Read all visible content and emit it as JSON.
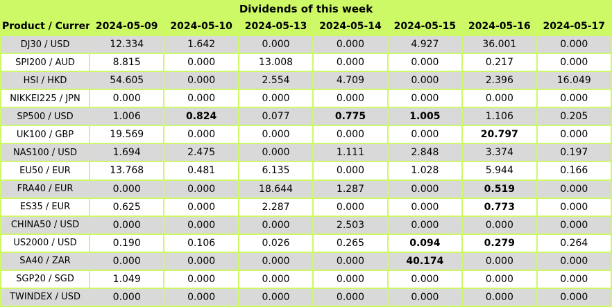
{
  "title": "Dividends of this week",
  "colors": {
    "header_bg": "#CDF966",
    "grid_border": "#CDF966",
    "row_even_bg": "#D9D9D9",
    "row_odd_bg": "#FFFFFF",
    "text": "#000000"
  },
  "table": {
    "product_header": "Product / Currency",
    "date_headers": [
      "2024-05-09",
      "2024-05-10",
      "2024-05-13",
      "2024-05-14",
      "2024-05-15",
      "2024-05-16",
      "2024-05-17"
    ],
    "rows": [
      {
        "product": "DJ30 / USD",
        "values": [
          "12.334",
          "1.642",
          "0.000",
          "0.000",
          "4.927",
          "36.001",
          "0.000"
        ],
        "bold_indices": []
      },
      {
        "product": "SPI200 / AUD",
        "values": [
          "8.815",
          "0.000",
          "13.008",
          "0.000",
          "0.000",
          "0.217",
          "0.000"
        ],
        "bold_indices": []
      },
      {
        "product": "HSI / HKD",
        "values": [
          "54.605",
          "0.000",
          "2.554",
          "4.709",
          "0.000",
          "2.396",
          "16.049"
        ],
        "bold_indices": []
      },
      {
        "product": "NIKKEI225 / JPN",
        "values": [
          "0.000",
          "0.000",
          "0.000",
          "0.000",
          "0.000",
          "0.000",
          "0.000"
        ],
        "bold_indices": []
      },
      {
        "product": "SP500 / USD",
        "values": [
          "1.006",
          "0.824",
          "0.077",
          "0.775",
          "1.005",
          "1.106",
          "0.205"
        ],
        "bold_indices": [
          1,
          3,
          4
        ]
      },
      {
        "product": "UK100 / GBP",
        "values": [
          "19.569",
          "0.000",
          "0.000",
          "0.000",
          "0.000",
          "20.797",
          "0.000"
        ],
        "bold_indices": [
          5
        ]
      },
      {
        "product": "NAS100 / USD",
        "values": [
          "1.694",
          "2.475",
          "0.000",
          "1.111",
          "2.848",
          "3.374",
          "0.197"
        ],
        "bold_indices": []
      },
      {
        "product": "EU50 / EUR",
        "values": [
          "13.768",
          "0.481",
          "6.135",
          "0.000",
          "1.028",
          "5.944",
          "0.166"
        ],
        "bold_indices": []
      },
      {
        "product": "FRA40 / EUR",
        "values": [
          "0.000",
          "0.000",
          "18.644",
          "1.287",
          "0.000",
          "0.519",
          "0.000"
        ],
        "bold_indices": [
          5
        ]
      },
      {
        "product": "ES35 / EUR",
        "values": [
          "0.625",
          "0.000",
          "2.287",
          "0.000",
          "0.000",
          "0.773",
          "0.000"
        ],
        "bold_indices": [
          5
        ]
      },
      {
        "product": "CHINA50 / USD",
        "values": [
          "0.000",
          "0.000",
          "0.000",
          "2.503",
          "0.000",
          "0.000",
          "0.000"
        ],
        "bold_indices": []
      },
      {
        "product": "US2000 / USD",
        "values": [
          "0.190",
          "0.106",
          "0.026",
          "0.265",
          "0.094",
          "0.279",
          "0.264"
        ],
        "bold_indices": [
          4,
          5
        ]
      },
      {
        "product": "SA40 / ZAR",
        "values": [
          "0.000",
          "0.000",
          "0.000",
          "0.000",
          "40.174",
          "0.000",
          "0.000"
        ],
        "bold_indices": [
          4
        ]
      },
      {
        "product": "SGP20 / SGD",
        "values": [
          "1.049",
          "0.000",
          "0.000",
          "0.000",
          "0.000",
          "0.000",
          "0.000"
        ],
        "bold_indices": []
      },
      {
        "product": "TWINDEX / USD",
        "values": [
          "0.000",
          "0.000",
          "0.000",
          "0.000",
          "0.000",
          "0.000",
          "0.000"
        ],
        "bold_indices": []
      }
    ]
  },
  "chart_data": {
    "type": "table",
    "title": "Dividends of this week",
    "columns": [
      "Product / Currency",
      "2024-05-09",
      "2024-05-10",
      "2024-05-13",
      "2024-05-14",
      "2024-05-15",
      "2024-05-16",
      "2024-05-17"
    ],
    "rows": [
      [
        "DJ30 / USD",
        12.334,
        1.642,
        0.0,
        0.0,
        4.927,
        36.001,
        0.0
      ],
      [
        "SPI200 / AUD",
        8.815,
        0.0,
        13.008,
        0.0,
        0.0,
        0.217,
        0.0
      ],
      [
        "HSI / HKD",
        54.605,
        0.0,
        2.554,
        4.709,
        0.0,
        2.396,
        16.049
      ],
      [
        "NIKKEI225 / JPN",
        0.0,
        0.0,
        0.0,
        0.0,
        0.0,
        0.0,
        0.0
      ],
      [
        "SP500 / USD",
        1.006,
        0.824,
        0.077,
        0.775,
        1.005,
        1.106,
        0.205
      ],
      [
        "UK100 / GBP",
        19.569,
        0.0,
        0.0,
        0.0,
        0.0,
        20.797,
        0.0
      ],
      [
        "NAS100 / USD",
        1.694,
        2.475,
        0.0,
        1.111,
        2.848,
        3.374,
        0.197
      ],
      [
        "EU50 / EUR",
        13.768,
        0.481,
        6.135,
        0.0,
        1.028,
        5.944,
        0.166
      ],
      [
        "FRA40 / EUR",
        0.0,
        0.0,
        18.644,
        1.287,
        0.0,
        0.519,
        0.0
      ],
      [
        "ES35 / EUR",
        0.625,
        0.0,
        2.287,
        0.0,
        0.0,
        0.773,
        0.0
      ],
      [
        "CHINA50 / USD",
        0.0,
        0.0,
        0.0,
        2.503,
        0.0,
        0.0,
        0.0
      ],
      [
        "US2000 / USD",
        0.19,
        0.106,
        0.026,
        0.265,
        0.094,
        0.279,
        0.264
      ],
      [
        "SA40 / ZAR",
        0.0,
        0.0,
        0.0,
        0.0,
        40.174,
        0.0,
        0.0
      ],
      [
        "SGP20 / SGD",
        1.049,
        0.0,
        0.0,
        0.0,
        0.0,
        0.0,
        0.0
      ],
      [
        "TWINDEX / USD",
        0.0,
        0.0,
        0.0,
        0.0,
        0.0,
        0.0,
        0.0
      ]
    ],
    "layout": {
      "grid": true,
      "header_background": "#CDF966",
      "alternating_row_colors": [
        "#D9D9D9",
        "#FFFFFF"
      ],
      "bold_cells_note": "bold values mark highlighted dividends"
    }
  }
}
